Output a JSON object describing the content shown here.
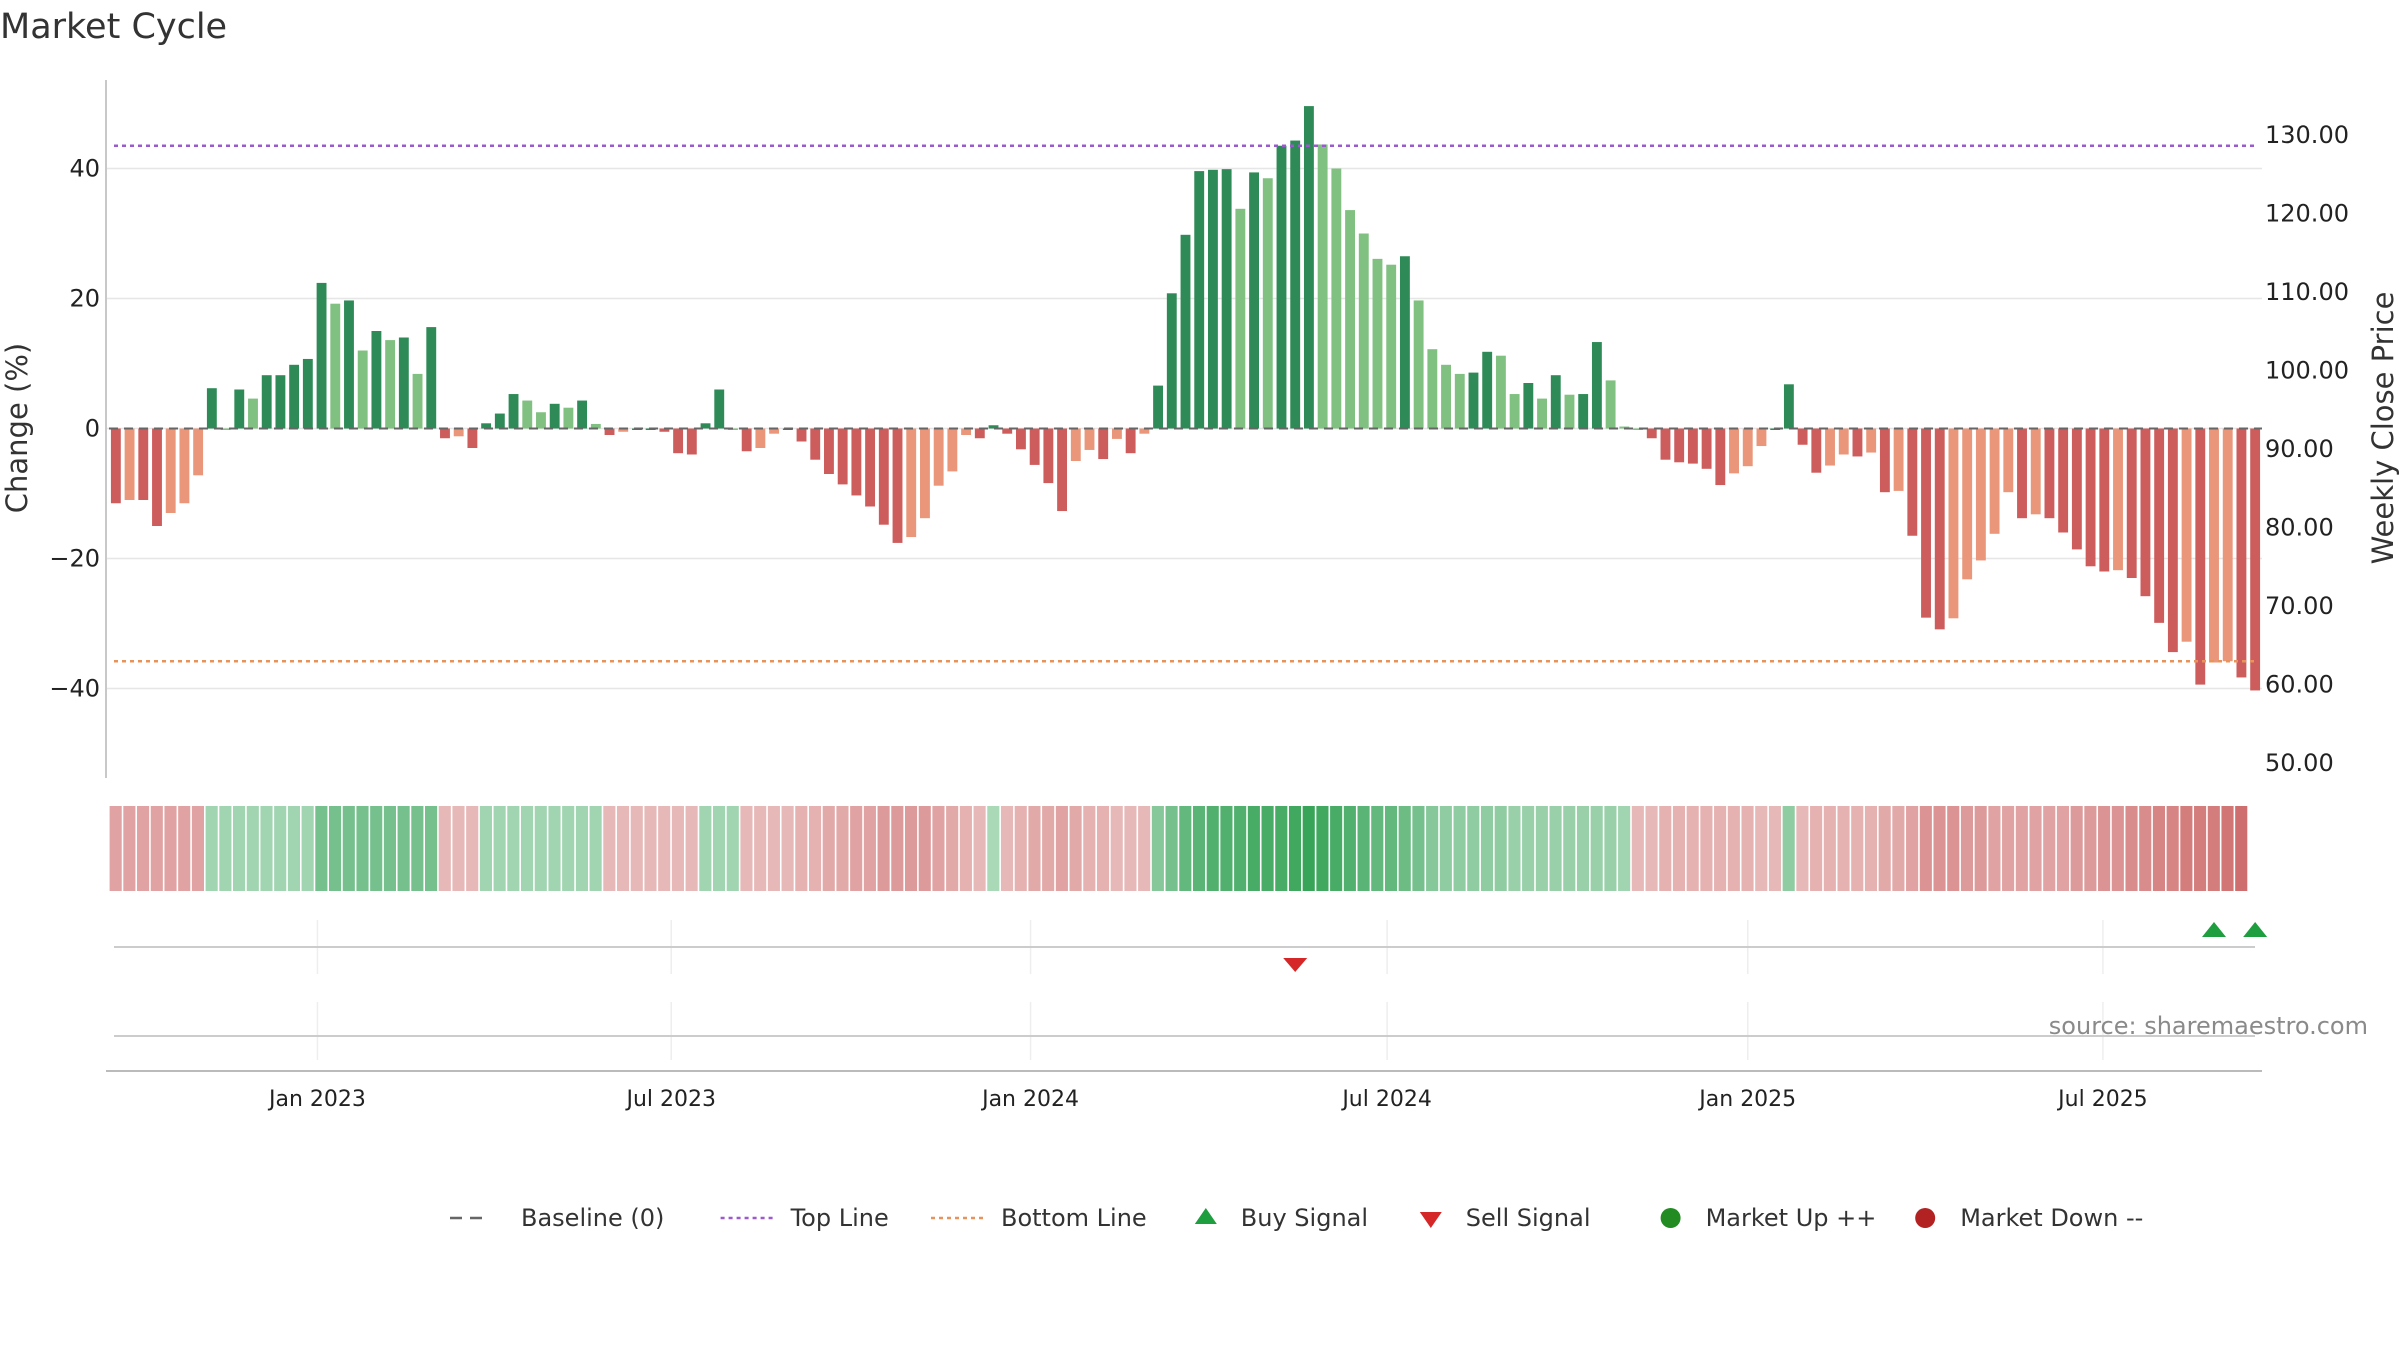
{
  "chart_data": {
    "type": "bar",
    "title": "Market Cycle",
    "ylabel_left": "Change (%)",
    "ylabel_right": "Weekly Close Price",
    "ylim_left": [
      -54,
      54
    ],
    "ylim_right": [
      50,
      132
    ],
    "left_ticks": [
      {
        "value": 40,
        "label": "40"
      },
      {
        "value": 20,
        "label": "20"
      },
      {
        "value": 0,
        "label": "0"
      },
      {
        "value": -20,
        "label": "−20"
      },
      {
        "value": -40,
        "label": "−40"
      }
    ],
    "right_ticks": [
      "130.00",
      "120.00",
      "110.00",
      "100.00",
      "90.00",
      "80.00",
      "70.00",
      "60.00",
      "50.00"
    ],
    "right_tick_values": [
      130,
      120,
      110,
      100,
      90,
      80,
      70,
      60,
      50
    ],
    "x_ticks": [
      "Jan 2023",
      "Jul 2023",
      "Jan 2024",
      "Jul 2024",
      "Jan 2025",
      "Jul 2025"
    ],
    "x_tick_positions": [
      15.2,
      41.0,
      67.2,
      93.2,
      119.5,
      145.4
    ],
    "grid": true,
    "top_line": 43.5,
    "bottom_line": -35.8,
    "colors": {
      "up_strong": "#2e8b57",
      "up_light": "#80c080",
      "down_strong": "#cd5c5c",
      "down_light": "#e9967a",
      "top_line": "#9b59d0",
      "bottom_line": "#e8935a",
      "baseline": "#666666",
      "buy": "#1e9e3e",
      "sell": "#d62728",
      "market_up": "#228b22",
      "market_down": "#b22222",
      "source": "#8a8a8a"
    },
    "values": [
      -11.5,
      -11,
      -11,
      -15,
      -13,
      -11.5,
      -7.2,
      6.2,
      0,
      6,
      4.6,
      8.2,
      8.2,
      9.8,
      10.7,
      22.4,
      19.2,
      19.7,
      12,
      15,
      13.6,
      14,
      8.4,
      15.6,
      -1.5,
      -1.2,
      -3,
      0.8,
      2.3,
      5.3,
      4.3,
      2.5,
      3.8,
      3.2,
      4.3,
      0.7,
      -1,
      -0.5,
      0,
      0,
      -0.5,
      -3.8,
      -4,
      0.8,
      6,
      0,
      -3.5,
      -3,
      -0.8,
      0,
      -2,
      -4.8,
      -7,
      -8.6,
      -10.3,
      -12,
      -14.8,
      -17.6,
      -16.7,
      -13.8,
      -8.8,
      -6.6,
      -1,
      -1.5,
      0.5,
      -0.8,
      -3.2,
      -5.6,
      -8.4,
      -12.7,
      -5,
      -3.3,
      -4.7,
      -1.6,
      -3.8,
      -0.8,
      6.6,
      20.8,
      29.8,
      39.6,
      39.8,
      39.9,
      33.8,
      39.4,
      38.5,
      43.5,
      44.3,
      49.6,
      43.7,
      40,
      33.6,
      30,
      26.1,
      25.2,
      26.5,
      19.7,
      12.2,
      9.8,
      8.4,
      8.6,
      11.8,
      11.2,
      5.3,
      7,
      4.6,
      8.2,
      5.2,
      5.3,
      13.3,
      7.4,
      0.3,
      0,
      -1.5,
      -4.8,
      -5.2,
      -5.4,
      -6.2,
      -8.7,
      -6.9,
      -5.8,
      -2.7,
      0,
      6.8,
      -2.5,
      -6.8,
      -5.7,
      -4,
      -4.3,
      -3.7,
      -9.8,
      -9.6,
      -16.5,
      -29.1,
      -30.9,
      -29.2,
      -23.2,
      -20.3,
      -16.2,
      -9.8,
      -13.8,
      -13.2,
      -13.8,
      -16,
      -18.6,
      -21.2,
      -22,
      -21.8,
      -23,
      -25.8,
      -29.9,
      -34.4,
      -32.8,
      -39.4,
      -36,
      -35.8,
      -38.3,
      -40.3
    ],
    "heat_values": [
      -0.45,
      -0.45,
      -0.45,
      -0.45,
      -0.45,
      -0.45,
      -0.45,
      0.35,
      0.35,
      0.35,
      0.35,
      0.35,
      0.35,
      0.35,
      0.35,
      0.6,
      0.6,
      0.6,
      0.6,
      0.6,
      0.6,
      0.6,
      0.6,
      0.6,
      -0.3,
      -0.3,
      -0.3,
      0.35,
      0.35,
      0.35,
      0.35,
      0.35,
      0.35,
      0.35,
      0.35,
      0.35,
      -0.3,
      -0.3,
      -0.3,
      -0.3,
      -0.3,
      -0.3,
      -0.3,
      0.35,
      0.35,
      0.35,
      -0.3,
      -0.3,
      -0.3,
      -0.3,
      -0.35,
      -0.35,
      -0.4,
      -0.4,
      -0.45,
      -0.45,
      -0.5,
      -0.5,
      -0.5,
      -0.5,
      -0.45,
      -0.4,
      -0.35,
      -0.3,
      0.3,
      -0.3,
      -0.35,
      -0.4,
      -0.4,
      -0.45,
      -0.4,
      -0.35,
      -0.35,
      -0.3,
      -0.3,
      -0.3,
      0.5,
      0.6,
      0.7,
      0.75,
      0.8,
      0.8,
      0.8,
      0.85,
      0.85,
      0.85,
      0.9,
      0.95,
      0.9,
      0.85,
      0.8,
      0.75,
      0.7,
      0.7,
      0.65,
      0.6,
      0.5,
      0.45,
      0.45,
      0.45,
      0.45,
      0.45,
      0.4,
      0.4,
      0.4,
      0.4,
      0.4,
      0.4,
      0.4,
      0.4,
      0.35,
      -0.3,
      -0.3,
      -0.35,
      -0.35,
      -0.35,
      -0.35,
      -0.35,
      -0.35,
      -0.35,
      -0.3,
      -0.3,
      0.45,
      -0.3,
      -0.35,
      -0.35,
      -0.35,
      -0.35,
      -0.35,
      -0.4,
      -0.4,
      -0.45,
      -0.55,
      -0.55,
      -0.55,
      -0.5,
      -0.5,
      -0.45,
      -0.45,
      -0.45,
      -0.45,
      -0.45,
      -0.45,
      -0.5,
      -0.5,
      -0.55,
      -0.55,
      -0.6,
      -0.6,
      -0.65,
      -0.65,
      -0.7,
      -0.7,
      -0.7,
      -0.75,
      -0.8
    ],
    "sell_signals": [
      86
    ],
    "buy_signals": [
      153,
      156
    ],
    "source_text": "source: sharemaestro.com",
    "legend": [
      {
        "label": "Baseline (0)",
        "kind": "dashed",
        "color": "#666666"
      },
      {
        "label": "Top Line",
        "kind": "dotted",
        "color": "#9b59d0"
      },
      {
        "label": "Bottom Line",
        "kind": "dotted",
        "color": "#e8935a"
      },
      {
        "label": "Buy Signal",
        "kind": "tri-up",
        "color": "#1e9e3e"
      },
      {
        "label": "Sell Signal",
        "kind": "tri-down",
        "color": "#d62728"
      },
      {
        "label": "Market Up ++",
        "kind": "dot",
        "color": "#228b22"
      },
      {
        "label": "Market Down --",
        "kind": "dot",
        "color": "#b22222"
      }
    ]
  }
}
